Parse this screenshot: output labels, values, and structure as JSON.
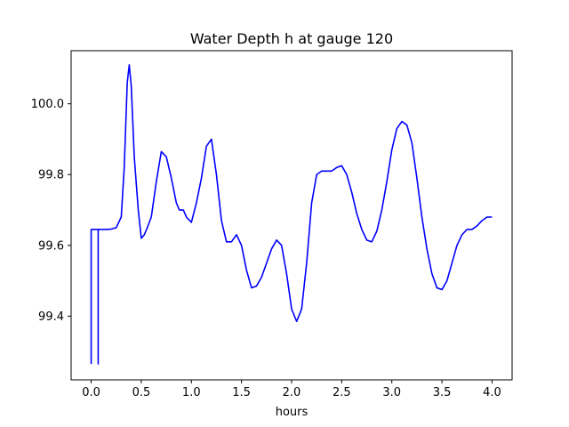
{
  "chart_data": {
    "type": "line",
    "title": "Water Depth h at gauge 120",
    "xlabel": "hours",
    "ylabel": "",
    "xlim": [
      -0.2,
      4.2
    ],
    "ylim": [
      99.22,
      100.15
    ],
    "xticks": [
      {
        "value": 0.0,
        "label": "0.0"
      },
      {
        "value": 0.5,
        "label": "0.5"
      },
      {
        "value": 1.0,
        "label": "1.0"
      },
      {
        "value": 1.5,
        "label": "1.5"
      },
      {
        "value": 2.0,
        "label": "2.0"
      },
      {
        "value": 2.5,
        "label": "2.5"
      },
      {
        "value": 3.0,
        "label": "3.0"
      },
      {
        "value": 3.5,
        "label": "3.5"
      },
      {
        "value": 4.0,
        "label": "4.0"
      }
    ],
    "yticks": [
      {
        "value": 99.4,
        "label": "99.4"
      },
      {
        "value": 99.6,
        "label": "99.6"
      },
      {
        "value": 99.8,
        "label": "99.8"
      },
      {
        "value": 100.0,
        "label": "100.0"
      }
    ],
    "grid": false,
    "series": [
      {
        "color": "#0000ff",
        "x": [
          0.0,
          0.0,
          0.0,
          0.07,
          0.07,
          0.07,
          0.15,
          0.2,
          0.25,
          0.3,
          0.33,
          0.36,
          0.38,
          0.4,
          0.43,
          0.47,
          0.5,
          0.53,
          0.56,
          0.6,
          0.65,
          0.7,
          0.75,
          0.8,
          0.85,
          0.88,
          0.92,
          0.95,
          1.0,
          1.05,
          1.1,
          1.15,
          1.2,
          1.25,
          1.3,
          1.35,
          1.4,
          1.45,
          1.5,
          1.55,
          1.6,
          1.65,
          1.7,
          1.75,
          1.8,
          1.85,
          1.9,
          1.95,
          2.0,
          2.05,
          2.1,
          2.15,
          2.2,
          2.25,
          2.3,
          2.35,
          2.4,
          2.45,
          2.5,
          2.55,
          2.6,
          2.65,
          2.7,
          2.75,
          2.8,
          2.85,
          2.9,
          2.95,
          3.0,
          3.05,
          3.1,
          3.15,
          3.2,
          3.25,
          3.3,
          3.35,
          3.4,
          3.45,
          3.5,
          3.55,
          3.6,
          3.65,
          3.7,
          3.75,
          3.8,
          3.85,
          3.9,
          3.95,
          4.0
        ],
        "y": [
          99.265,
          99.645,
          99.645,
          99.645,
          99.265,
          99.645,
          99.645,
          99.646,
          99.65,
          99.68,
          99.82,
          100.06,
          100.11,
          100.05,
          99.85,
          99.7,
          99.62,
          99.63,
          99.65,
          99.68,
          99.78,
          99.865,
          99.85,
          99.79,
          99.72,
          99.7,
          99.7,
          99.68,
          99.665,
          99.72,
          99.79,
          99.88,
          99.9,
          99.8,
          99.67,
          99.61,
          99.61,
          99.63,
          99.6,
          99.53,
          99.48,
          99.485,
          99.51,
          99.55,
          99.59,
          99.615,
          99.6,
          99.52,
          99.42,
          99.385,
          99.42,
          99.55,
          99.72,
          99.8,
          99.81,
          99.81,
          99.81,
          99.82,
          99.825,
          99.8,
          99.75,
          99.69,
          99.645,
          99.615,
          99.61,
          99.64,
          99.7,
          99.78,
          99.87,
          99.93,
          99.95,
          99.94,
          99.89,
          99.79,
          99.68,
          99.59,
          99.52,
          99.48,
          99.475,
          99.5,
          99.55,
          99.6,
          99.63,
          99.645,
          99.645,
          99.655,
          99.67,
          99.68,
          99.68
        ]
      }
    ]
  }
}
